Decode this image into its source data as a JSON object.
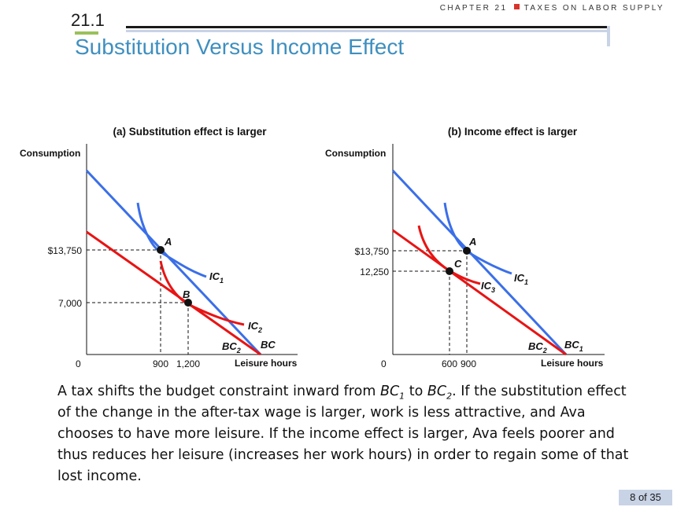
{
  "header": {
    "section_number": "21.1",
    "chapter_label": "CHAPTER 21",
    "chapter_topic": "TAXES ON LABOR SUPPLY",
    "title": "Substitution Versus Income Effect"
  },
  "panels": [
    {
      "title": "(a) Substitution effect is larger",
      "y_axis_label": "Consumption",
      "x_axis_label": "Leisure hours",
      "origin_label": "0",
      "y_ticks": [
        "$13,750",
        "7,000"
      ],
      "x_ticks": [
        "900",
        "1,200"
      ],
      "points": [
        "A",
        "B"
      ],
      "curves": {
        "ic_first": "IC",
        "ic_first_sub": "1",
        "ic_second": "IC",
        "ic_second_sub": "2",
        "bc_new": "BC",
        "bc_new_sub": "2",
        "bc_old": "BC"
      },
      "point_values": [
        {
          "label": "A",
          "leisure": 900,
          "consumption": 13750
        },
        {
          "label": "B",
          "leisure": 1200,
          "consumption": 7000
        }
      ]
    },
    {
      "title": "(b) Income effect is larger",
      "y_axis_label": "Consumption",
      "x_axis_label": "Leisure hours",
      "origin_label": "0",
      "y_ticks": [
        "$13,750",
        "12,250"
      ],
      "x_ticks": [
        "600",
        "900"
      ],
      "points": [
        "A",
        "C"
      ],
      "curves": {
        "ic_first": "IC",
        "ic_first_sub": "1",
        "ic_second": "IC",
        "ic_second_sub": "3",
        "bc_new": "BC",
        "bc_new_sub": "2",
        "bc_old": "BC",
        "bc_old_sub": "1"
      },
      "point_values": [
        {
          "label": "A",
          "leisure": 900,
          "consumption": 13750
        },
        {
          "label": "C",
          "leisure": 600,
          "consumption": 12250
        }
      ]
    }
  ],
  "colors": {
    "original": "#3b6fe8",
    "after_tax": "#e81414",
    "title": "#3f8fbf"
  },
  "caption": {
    "p1": "A tax shifts the budget constraint inward from ",
    "bc1": "BC",
    "bc1_sub": "1",
    "p2": " to ",
    "bc2": "BC",
    "bc2_sub": "2",
    "p3": ". If the substitution effect of the change in the after-tax wage is larger, work is less attractive, and Ava chooses to have more leisure. If the income effect is larger, Ava feels poorer and thus reduces her leisure (increases her work hours) in order to regain some of that lost income."
  },
  "footer": {
    "page": "8 of 35"
  }
}
